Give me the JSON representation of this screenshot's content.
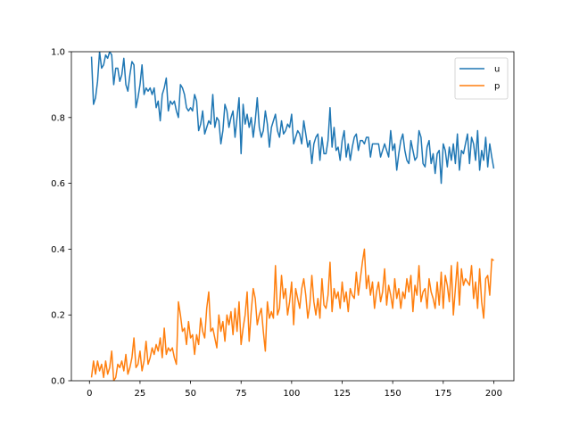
{
  "chart_data": {
    "type": "line",
    "x": [
      1,
      2,
      3,
      4,
      5,
      6,
      7,
      8,
      9,
      10,
      11,
      12,
      13,
      14,
      15,
      16,
      17,
      18,
      19,
      20,
      21,
      22,
      23,
      24,
      25,
      26,
      27,
      28,
      29,
      30,
      31,
      32,
      33,
      34,
      35,
      36,
      37,
      38,
      39,
      40,
      41,
      42,
      43,
      44,
      45,
      46,
      47,
      48,
      49,
      50,
      51,
      52,
      53,
      54,
      55,
      56,
      57,
      58,
      59,
      60,
      61,
      62,
      63,
      64,
      65,
      66,
      67,
      68,
      69,
      70,
      71,
      72,
      73,
      74,
      75,
      76,
      77,
      78,
      79,
      80,
      81,
      82,
      83,
      84,
      85,
      86,
      87,
      88,
      89,
      90,
      91,
      92,
      93,
      94,
      95,
      96,
      97,
      98,
      99,
      100,
      101,
      102,
      103,
      104,
      105,
      106,
      107,
      108,
      109,
      110,
      111,
      112,
      113,
      114,
      115,
      116,
      117,
      118,
      119,
      120,
      121,
      122,
      123,
      124,
      125,
      126,
      127,
      128,
      129,
      130,
      131,
      132,
      133,
      134,
      135,
      136,
      137,
      138,
      139,
      140,
      141,
      142,
      143,
      144,
      145,
      146,
      147,
      148,
      149,
      150,
      151,
      152,
      153,
      154,
      155,
      156,
      157,
      158,
      159,
      160,
      161,
      162,
      163,
      164,
      165,
      166,
      167,
      168,
      169,
      170,
      171,
      172,
      173,
      174,
      175,
      176,
      177,
      178,
      179,
      180,
      181,
      182,
      183,
      184,
      185,
      186,
      187,
      188,
      189,
      190,
      191,
      192,
      193,
      194,
      195,
      196,
      197,
      198,
      199,
      200
    ],
    "series": [
      {
        "name": "u",
        "color": "#1f77b4",
        "values": [
          0.985,
          0.84,
          0.86,
          0.91,
          1.0,
          0.95,
          0.96,
          0.99,
          0.98,
          1.0,
          0.99,
          0.9,
          0.95,
          0.95,
          0.91,
          0.93,
          0.98,
          0.9,
          0.88,
          0.93,
          0.97,
          0.96,
          0.83,
          0.86,
          0.9,
          0.96,
          0.87,
          0.89,
          0.88,
          0.89,
          0.87,
          0.89,
          0.83,
          0.85,
          0.79,
          0.87,
          0.89,
          0.92,
          0.82,
          0.85,
          0.84,
          0.85,
          0.82,
          0.8,
          0.9,
          0.89,
          0.87,
          0.83,
          0.82,
          0.83,
          0.82,
          0.87,
          0.85,
          0.76,
          0.78,
          0.82,
          0.75,
          0.77,
          0.79,
          0.78,
          0.87,
          0.77,
          0.8,
          0.79,
          0.72,
          0.76,
          0.84,
          0.82,
          0.77,
          0.8,
          0.82,
          0.74,
          0.8,
          0.86,
          0.69,
          0.84,
          0.78,
          0.81,
          0.77,
          0.8,
          0.74,
          0.79,
          0.86,
          0.77,
          0.74,
          0.76,
          0.82,
          0.78,
          0.71,
          0.77,
          0.79,
          0.81,
          0.76,
          0.74,
          0.79,
          0.75,
          0.76,
          0.78,
          0.77,
          0.81,
          0.72,
          0.74,
          0.76,
          0.75,
          0.72,
          0.79,
          0.75,
          0.71,
          0.73,
          0.66,
          0.72,
          0.74,
          0.75,
          0.67,
          0.74,
          0.69,
          0.69,
          0.73,
          0.83,
          0.71,
          0.77,
          0.7,
          0.71,
          0.67,
          0.73,
          0.76,
          0.68,
          0.72,
          0.67,
          0.71,
          0.74,
          0.75,
          0.7,
          0.73,
          0.73,
          0.72,
          0.74,
          0.74,
          0.68,
          0.72,
          0.72,
          0.72,
          0.72,
          0.68,
          0.7,
          0.72,
          0.7,
          0.68,
          0.76,
          0.7,
          0.72,
          0.64,
          0.69,
          0.73,
          0.75,
          0.7,
          0.67,
          0.66,
          0.73,
          0.7,
          0.67,
          0.68,
          0.76,
          0.74,
          0.66,
          0.65,
          0.71,
          0.73,
          0.66,
          0.69,
          0.63,
          0.69,
          0.7,
          0.6,
          0.72,
          0.7,
          0.65,
          0.71,
          0.67,
          0.72,
          0.66,
          0.75,
          0.64,
          0.7,
          0.69,
          0.72,
          0.75,
          0.66,
          0.74,
          0.72,
          0.67,
          0.76,
          0.64,
          0.7,
          0.67,
          0.74,
          0.65,
          0.72,
          0.68,
          0.645
        ]
      },
      {
        "name": "p",
        "color": "#ff7f0e",
        "values": [
          0.01,
          0.06,
          0.02,
          0.06,
          0.03,
          0.05,
          0.01,
          0.06,
          0.02,
          0.04,
          0.09,
          0.0,
          0.01,
          0.05,
          0.04,
          0.06,
          0.03,
          0.08,
          0.02,
          0.04,
          0.07,
          0.13,
          0.04,
          0.05,
          0.09,
          0.03,
          0.06,
          0.12,
          0.05,
          0.07,
          0.1,
          0.08,
          0.11,
          0.09,
          0.13,
          0.07,
          0.16,
          0.08,
          0.1,
          0.09,
          0.1,
          0.07,
          0.05,
          0.24,
          0.2,
          0.15,
          0.16,
          0.11,
          0.18,
          0.13,
          0.14,
          0.08,
          0.14,
          0.11,
          0.19,
          0.15,
          0.13,
          0.22,
          0.27,
          0.15,
          0.16,
          0.13,
          0.1,
          0.2,
          0.15,
          0.18,
          0.12,
          0.2,
          0.17,
          0.21,
          0.14,
          0.22,
          0.15,
          0.24,
          0.11,
          0.16,
          0.2,
          0.27,
          0.12,
          0.21,
          0.28,
          0.25,
          0.17,
          0.2,
          0.22,
          0.15,
          0.09,
          0.24,
          0.19,
          0.21,
          0.19,
          0.35,
          0.2,
          0.22,
          0.32,
          0.25,
          0.28,
          0.2,
          0.24,
          0.3,
          0.17,
          0.28,
          0.25,
          0.22,
          0.28,
          0.31,
          0.26,
          0.19,
          0.23,
          0.32,
          0.24,
          0.2,
          0.25,
          0.19,
          0.31,
          0.23,
          0.22,
          0.26,
          0.36,
          0.21,
          0.28,
          0.25,
          0.27,
          0.22,
          0.3,
          0.24,
          0.27,
          0.21,
          0.28,
          0.26,
          0.25,
          0.33,
          0.26,
          0.31,
          0.36,
          0.4,
          0.28,
          0.32,
          0.26,
          0.3,
          0.22,
          0.27,
          0.3,
          0.24,
          0.27,
          0.34,
          0.23,
          0.29,
          0.26,
          0.22,
          0.31,
          0.25,
          0.28,
          0.22,
          0.27,
          0.25,
          0.31,
          0.27,
          0.32,
          0.21,
          0.29,
          0.26,
          0.35,
          0.24,
          0.27,
          0.28,
          0.22,
          0.31,
          0.27,
          0.25,
          0.22,
          0.3,
          0.23,
          0.33,
          0.22,
          0.32,
          0.29,
          0.24,
          0.35,
          0.2,
          0.28,
          0.36,
          0.23,
          0.34,
          0.29,
          0.31,
          0.3,
          0.29,
          0.35,
          0.25,
          0.3,
          0.22,
          0.34,
          0.24,
          0.19,
          0.31,
          0.32,
          0.26,
          0.37,
          0.365
        ]
      }
    ],
    "xlim": [
      -8.95,
      209.95
    ],
    "ylim": [
      0,
      1
    ],
    "xticks": [
      0,
      25,
      50,
      75,
      100,
      125,
      150,
      175,
      200
    ],
    "yticks": [
      {
        "value": 0,
        "label": "0.0"
      },
      0.2,
      0.4,
      0.6,
      0.8,
      {
        "value": 1,
        "label": "1.0"
      }
    ],
    "legend": "upper right"
  }
}
